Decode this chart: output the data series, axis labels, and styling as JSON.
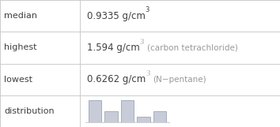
{
  "rows": [
    {
      "label": "median",
      "value": "0.9335 g/cm",
      "sup": "3",
      "note": ""
    },
    {
      "label": "highest",
      "value": "1.594 g/cm",
      "sup": "3",
      "note": "(carbon tetrachloride)"
    },
    {
      "label": "lowest",
      "value": "0.6262 g/cm",
      "sup": "3",
      "note": "(N−pentane)"
    },
    {
      "label": "distribution",
      "value": "",
      "sup": "",
      "note": ""
    }
  ],
  "hist_bar_heights": [
    4,
    2,
    4,
    1,
    2
  ],
  "hist_bar_color": "#c8ccd8",
  "hist_bar_edge": "#9098b0",
  "table_line_color": "#cccccc",
  "text_color": "#404040",
  "note_color": "#999999",
  "bg_color": "#ffffff",
  "label_fontsize": 8.0,
  "value_fontsize": 8.5,
  "sup_fontsize": 6.0,
  "note_fontsize": 7.5,
  "col_split": 0.285
}
